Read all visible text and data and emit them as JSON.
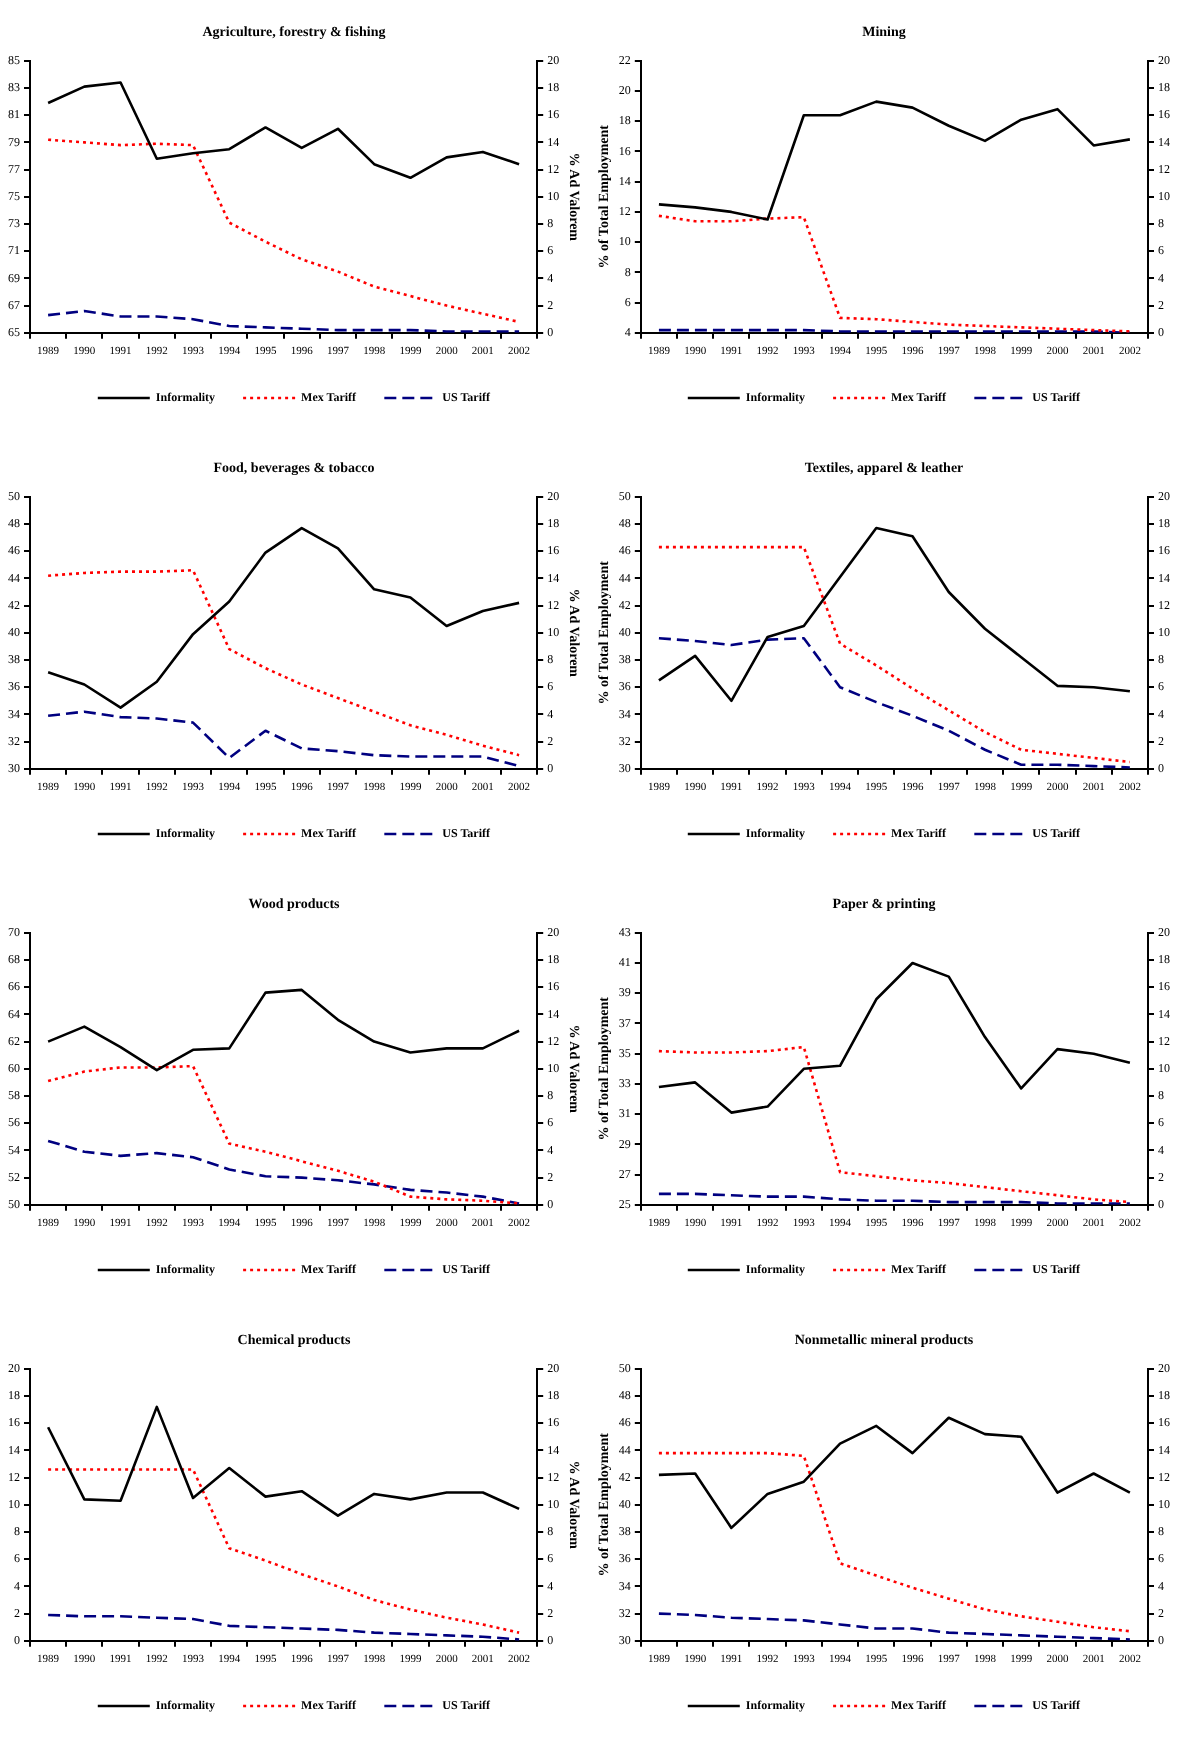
{
  "chart_data": [
    {
      "type": "line",
      "title": "Agriculture, forestry & fishing",
      "y2label": "% Ad Valorem",
      "categories": [
        "1989",
        "1990",
        "1991",
        "1992",
        "1993",
        "1994",
        "1995",
        "1996",
        "1997",
        "1998",
        "1999",
        "2000",
        "2001",
        "2002"
      ],
      "ylim": [
        65,
        85
      ],
      "yticks": [
        65,
        67,
        69,
        71,
        73,
        75,
        77,
        79,
        81,
        83,
        85
      ],
      "y2lim": [
        0,
        20
      ],
      "y2ticks": [
        0,
        2,
        4,
        6,
        8,
        10,
        12,
        14,
        16,
        18,
        20
      ],
      "legend": "bottom",
      "marker": "none",
      "series": [
        {
          "name": "Informality",
          "color": "#000000",
          "line_style": "solid",
          "values": [
            81.9,
            83.1,
            83.4,
            77.8,
            78.2,
            78.5,
            80.1,
            78.6,
            80.0,
            77.4,
            76.4,
            77.9,
            78.3,
            77.4
          ]
        },
        {
          "name": "Mex Tariff",
          "color": "#ff0000",
          "line_style": "dotted",
          "axis": "y2",
          "values": [
            14.2,
            14.0,
            13.8,
            13.9,
            13.8,
            8.1,
            6.7,
            5.4,
            4.5,
            3.4,
            2.7,
            2.0,
            1.4,
            0.8
          ]
        },
        {
          "name": "US Tariff",
          "color": "#000080",
          "line_style": "dashed",
          "axis": "y2",
          "values": [
            1.3,
            1.6,
            1.2,
            1.2,
            1.0,
            0.5,
            0.4,
            0.3,
            0.2,
            0.2,
            0.2,
            0.1,
            0.1,
            0.1
          ]
        }
      ]
    },
    {
      "type": "line",
      "title": "Mining",
      "ylabel": "% of Total Employment",
      "categories": [
        "1989",
        "1990",
        "1991",
        "1992",
        "1993",
        "1994",
        "1995",
        "1996",
        "1997",
        "1998",
        "1999",
        "2000",
        "2001",
        "2002"
      ],
      "ylim": [
        4,
        22
      ],
      "yticks": [
        4,
        6,
        8,
        10,
        12,
        14,
        16,
        18,
        20,
        22
      ],
      "y2lim": [
        0,
        20
      ],
      "y2ticks": [
        0,
        2,
        4,
        6,
        8,
        10,
        12,
        14,
        16,
        18,
        20
      ],
      "legend": "bottom",
      "marker": "none",
      "series": [
        {
          "name": "Informality",
          "color": "#000000",
          "line_style": "solid",
          "values": [
            12.5,
            12.3,
            12.0,
            11.5,
            18.4,
            18.4,
            19.3,
            18.9,
            17.7,
            16.7,
            18.1,
            18.8,
            16.4,
            16.8
          ]
        },
        {
          "name": "Mex Tariff",
          "color": "#ff0000",
          "line_style": "dotted",
          "axis": "y2",
          "values": [
            8.6,
            8.2,
            8.2,
            8.4,
            8.5,
            1.1,
            1.0,
            0.8,
            0.6,
            0.5,
            0.4,
            0.3,
            0.2,
            0.1
          ]
        },
        {
          "name": "US Tariff",
          "color": "#000080",
          "line_style": "dashed",
          "axis": "y2",
          "values": [
            0.2,
            0.2,
            0.2,
            0.2,
            0.2,
            0.1,
            0.1,
            0.1,
            0.1,
            0.1,
            0.1,
            0.1,
            0.1,
            0.0
          ]
        }
      ]
    },
    {
      "type": "line",
      "title": "Food, beverages & tobacco",
      "y2label": "% Ad Valorem",
      "categories": [
        "1989",
        "1990",
        "1991",
        "1992",
        "1993",
        "1994",
        "1995",
        "1996",
        "1997",
        "1998",
        "1999",
        "2000",
        "2001",
        "2002"
      ],
      "ylim": [
        30,
        50
      ],
      "yticks": [
        30,
        32,
        34,
        36,
        38,
        40,
        42,
        44,
        46,
        48,
        50
      ],
      "y2lim": [
        0,
        20
      ],
      "y2ticks": [
        0,
        2,
        4,
        6,
        8,
        10,
        12,
        14,
        16,
        18,
        20
      ],
      "legend": "bottom",
      "marker": "none",
      "series": [
        {
          "name": "Informality",
          "color": "#000000",
          "line_style": "solid",
          "values": [
            37.1,
            36.2,
            34.5,
            36.4,
            39.9,
            42.3,
            45.9,
            47.7,
            46.2,
            43.2,
            42.6,
            40.5,
            41.6,
            42.2
          ]
        },
        {
          "name": "Mex Tariff",
          "color": "#ff0000",
          "line_style": "dotted",
          "axis": "y2",
          "values": [
            14.2,
            14.4,
            14.5,
            14.5,
            14.6,
            8.8,
            7.4,
            6.2,
            5.2,
            4.2,
            3.2,
            2.5,
            1.7,
            1.0
          ]
        },
        {
          "name": "US Tariff",
          "color": "#000080",
          "line_style": "dashed",
          "axis": "y2",
          "values": [
            3.9,
            4.2,
            3.8,
            3.7,
            3.4,
            0.8,
            2.8,
            1.5,
            1.3,
            1.0,
            0.9,
            0.9,
            0.9,
            0.2
          ]
        }
      ]
    },
    {
      "type": "line",
      "title": "Textiles, apparel & leather",
      "ylabel": "% of Total Employment",
      "categories": [
        "1989",
        "1990",
        "1991",
        "1992",
        "1993",
        "1994",
        "1995",
        "1996",
        "1997",
        "1998",
        "1999",
        "2000",
        "2001",
        "2002"
      ],
      "ylim": [
        30,
        50
      ],
      "yticks": [
        30,
        32,
        34,
        36,
        38,
        40,
        42,
        44,
        46,
        48,
        50
      ],
      "y2lim": [
        0,
        20
      ],
      "y2ticks": [
        0,
        2,
        4,
        6,
        8,
        10,
        12,
        14,
        16,
        18,
        20
      ],
      "legend": "bottom",
      "marker": "none",
      "series": [
        {
          "name": "Informality",
          "color": "#000000",
          "line_style": "solid",
          "values": [
            36.5,
            38.3,
            35.0,
            39.7,
            40.5,
            44.1,
            47.7,
            47.1,
            43.0,
            40.3,
            38.2,
            36.1,
            36.0,
            35.7
          ]
        },
        {
          "name": "Mex Tariff",
          "color": "#ff0000",
          "line_style": "dotted",
          "axis": "y2",
          "values": [
            16.3,
            16.3,
            16.3,
            16.3,
            16.3,
            9.2,
            7.6,
            5.9,
            4.3,
            2.7,
            1.4,
            1.1,
            0.8,
            0.5
          ]
        },
        {
          "name": "US Tariff",
          "color": "#000080",
          "line_style": "dashed",
          "axis": "y2",
          "values": [
            9.6,
            9.4,
            9.1,
            9.5,
            9.6,
            6.0,
            4.9,
            3.9,
            2.8,
            1.4,
            0.3,
            0.3,
            0.2,
            0.1
          ]
        }
      ]
    },
    {
      "type": "line",
      "title": "Wood products",
      "y2label": "% Ad Valorem",
      "categories": [
        "1989",
        "1990",
        "1991",
        "1992",
        "1993",
        "1994",
        "1995",
        "1996",
        "1997",
        "1998",
        "1999",
        "2000",
        "2001",
        "2002"
      ],
      "ylim": [
        50,
        70
      ],
      "yticks": [
        50,
        52,
        54,
        56,
        58,
        60,
        62,
        64,
        66,
        68,
        70
      ],
      "y2lim": [
        0,
        20
      ],
      "y2ticks": [
        0,
        2,
        4,
        6,
        8,
        10,
        12,
        14,
        16,
        18,
        20
      ],
      "legend": "bottom",
      "marker": "none",
      "series": [
        {
          "name": "Informality",
          "color": "#000000",
          "line_style": "solid",
          "values": [
            62.0,
            63.1,
            61.6,
            59.9,
            61.4,
            61.5,
            65.6,
            65.8,
            63.6,
            62.0,
            61.2,
            61.5,
            61.5,
            62.8
          ]
        },
        {
          "name": "Mex Tariff",
          "color": "#ff0000",
          "line_style": "dotted",
          "axis": "y2",
          "values": [
            9.1,
            9.8,
            10.1,
            10.1,
            10.2,
            4.5,
            3.9,
            3.2,
            2.5,
            1.7,
            0.6,
            0.4,
            0.3,
            0.1
          ]
        },
        {
          "name": "US Tariff",
          "color": "#000080",
          "line_style": "dashed",
          "axis": "y2",
          "values": [
            4.7,
            3.9,
            3.6,
            3.8,
            3.5,
            2.6,
            2.1,
            2.0,
            1.8,
            1.5,
            1.1,
            0.9,
            0.6,
            0.1
          ]
        }
      ]
    },
    {
      "type": "line",
      "title": "Paper & printing",
      "ylabel": "% of Total Employment",
      "categories": [
        "1989",
        "1990",
        "1991",
        "1992",
        "1993",
        "1994",
        "1995",
        "1996",
        "1997",
        "1998",
        "1999",
        "2000",
        "2001",
        "2002"
      ],
      "ylim": [
        25,
        43
      ],
      "yticks": [
        25,
        27,
        29,
        31,
        33,
        35,
        37,
        39,
        41,
        43
      ],
      "y2lim": [
        0,
        20
      ],
      "y2ticks": [
        0,
        2,
        4,
        6,
        8,
        10,
        12,
        14,
        16,
        18,
        20
      ],
      "legend": "bottom",
      "marker": "none",
      "series": [
        {
          "name": "Informality",
          "color": "#000000",
          "line_style": "solid",
          "values": [
            32.8,
            33.1,
            31.1,
            31.5,
            34.0,
            34.2,
            38.6,
            41.0,
            40.1,
            36.1,
            32.7,
            35.3,
            35.0,
            34.4
          ]
        },
        {
          "name": "Mex Tariff",
          "color": "#ff0000",
          "line_style": "dotted",
          "axis": "y2",
          "values": [
            11.3,
            11.2,
            11.2,
            11.3,
            11.6,
            2.4,
            2.1,
            1.8,
            1.6,
            1.3,
            1.0,
            0.7,
            0.4,
            0.2
          ]
        },
        {
          "name": "US Tariff",
          "color": "#000080",
          "line_style": "dashed",
          "axis": "y2",
          "values": [
            0.8,
            0.8,
            0.7,
            0.6,
            0.6,
            0.4,
            0.3,
            0.3,
            0.2,
            0.2,
            0.2,
            0.1,
            0.1,
            0.1
          ]
        }
      ]
    },
    {
      "type": "line",
      "title": "Chemical products",
      "y2label": "% Ad Valorem",
      "categories": [
        "1989",
        "1990",
        "1991",
        "1992",
        "1993",
        "1994",
        "1995",
        "1996",
        "1997",
        "1998",
        "1999",
        "2000",
        "2001",
        "2002"
      ],
      "ylim": [
        0,
        20
      ],
      "yticks": [
        0,
        2,
        4,
        6,
        8,
        10,
        12,
        14,
        16,
        18,
        20
      ],
      "y2lim": [
        0,
        20
      ],
      "y2ticks": [
        0,
        2,
        4,
        6,
        8,
        10,
        12,
        14,
        16,
        18,
        20
      ],
      "legend": "bottom",
      "marker": "none",
      "series": [
        {
          "name": "Informality",
          "color": "#000000",
          "line_style": "solid",
          "values": [
            15.7,
            10.4,
            10.3,
            17.2,
            10.5,
            12.7,
            10.6,
            11.0,
            9.2,
            10.8,
            10.4,
            10.9,
            10.9,
            9.7
          ]
        },
        {
          "name": "Mex Tariff",
          "color": "#ff0000",
          "line_style": "dotted",
          "axis": "y2",
          "values": [
            12.6,
            12.6,
            12.6,
            12.6,
            12.6,
            6.8,
            5.9,
            4.9,
            4.0,
            3.0,
            2.3,
            1.7,
            1.2,
            0.6
          ]
        },
        {
          "name": "US Tariff",
          "color": "#000080",
          "line_style": "dashed",
          "axis": "y2",
          "values": [
            1.9,
            1.8,
            1.8,
            1.7,
            1.6,
            1.1,
            1.0,
            0.9,
            0.8,
            0.6,
            0.5,
            0.4,
            0.3,
            0.1
          ]
        }
      ]
    },
    {
      "type": "line",
      "title": "Nonmetallic mineral products",
      "ylabel": "% of Total Employment",
      "categories": [
        "1989",
        "1990",
        "1991",
        "1992",
        "1993",
        "1994",
        "1995",
        "1996",
        "1997",
        "1998",
        "1999",
        "2000",
        "2001",
        "2002"
      ],
      "ylim": [
        30,
        50
      ],
      "yticks": [
        30,
        32,
        34,
        36,
        38,
        40,
        42,
        44,
        46,
        48,
        50
      ],
      "y2lim": [
        0,
        20
      ],
      "y2ticks": [
        0,
        2,
        4,
        6,
        8,
        10,
        12,
        14,
        16,
        18,
        20
      ],
      "legend": "bottom",
      "marker": "none",
      "series": [
        {
          "name": "Informality",
          "color": "#000000",
          "line_style": "solid",
          "values": [
            42.2,
            42.3,
            38.3,
            40.8,
            41.7,
            44.5,
            45.8,
            43.8,
            46.4,
            45.2,
            45.0,
            40.9,
            42.3,
            40.9
          ]
        },
        {
          "name": "Mex Tariff",
          "color": "#ff0000",
          "line_style": "dotted",
          "axis": "y2",
          "values": [
            13.8,
            13.8,
            13.8,
            13.8,
            13.6,
            5.7,
            4.8,
            3.9,
            3.1,
            2.3,
            1.8,
            1.4,
            1.0,
            0.7
          ]
        },
        {
          "name": "US Tariff",
          "color": "#000080",
          "line_style": "dashed",
          "axis": "y2",
          "values": [
            2.0,
            1.9,
            1.7,
            1.6,
            1.5,
            1.2,
            0.9,
            0.9,
            0.6,
            0.5,
            0.4,
            0.3,
            0.2,
            0.1
          ]
        }
      ]
    }
  ]
}
